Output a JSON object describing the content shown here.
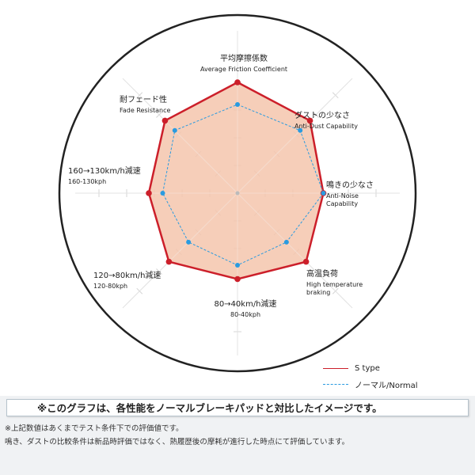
{
  "chart_data": {
    "type": "radar",
    "scale_max": 5,
    "axes": [
      {
        "label": "平均摩擦係数",
        "sublabel": "Average Friction Coefficient"
      },
      {
        "label": "ダストの少なさ",
        "sublabel": "Anti-Dust Capability"
      },
      {
        "label": "鳴きの少なさ",
        "sublabel": "Anti-Noise Capability"
      },
      {
        "label": "高温負荷",
        "sublabel": "High temperature braking"
      },
      {
        "label": "80→40km/h減速",
        "sublabel": "80-40kph"
      },
      {
        "label": "120→80km/h減速",
        "sublabel": "120-80kph"
      },
      {
        "label": "160→130km/h減速",
        "sublabel": "160-130kph"
      },
      {
        "label": "耐フェード性",
        "sublabel": "Fade Resistance"
      }
    ],
    "series": [
      {
        "name": "S type",
        "color": "#cc1f2a",
        "fill": "#f5c5ad",
        "values": [
          4.0,
          3.7,
          3.1,
          3.5,
          3.1,
          3.5,
          3.2,
          3.7
        ]
      },
      {
        "name": "ノーマル/Normal",
        "color": "#2a9be0",
        "values": [
          3.2,
          3.2,
          3.1,
          2.5,
          2.6,
          2.5,
          2.7,
          3.2
        ]
      }
    ],
    "grid": true,
    "legend": "bottom-right"
  },
  "note": {
    "title": "※このグラフは、各性能をノーマルブレーキパッドと対比したイメージです。",
    "line1": "※上記数値はあくまでテスト条件下での評価値です。",
    "line2": "鳴き、ダストの比較条件は新品時評価ではなく、熱履歴後の摩耗が進行した時点にて評価しています。"
  }
}
